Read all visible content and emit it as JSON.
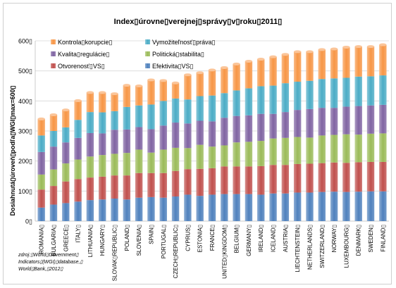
{
  "chart_data": {
    "type": "bar",
    "stacked": true,
    "title": "Index▯úrovne▯verejnej▯správy▯v▯roku▯2011▯",
    "ylabel": "Dosiahnutá▯úroveň▯podľa▯WGI▯max=600▯",
    "ylim": [
      0,
      600
    ],
    "yticks": [
      "0▯",
      "100▯",
      "200▯",
      "300▯",
      "400▯",
      "500▯",
      "600▯"
    ],
    "grid": true,
    "legend_position": "top-left",
    "categories": [
      "ROMANIA▯",
      "BULGARIA▯",
      "GREECE▯",
      "ITALY▯",
      "LITHUANIA▯",
      "HUNGARY▯",
      "SLOVAK▯REPUBLIC▯",
      "POLAND▯",
      "SLOVENIA▯",
      "SPAIN▯",
      "PORTUGAL▯",
      "CZECH▯REPUBLIC▯",
      "CYPRUS▯",
      "ESTONIA▯",
      "FRANCE▯",
      "UNITED▯KINGDOM▯",
      "BELGIUM▯",
      "GERMANY▯",
      "IRELAND▯",
      "ICELAND▯",
      "AUSTRIA▯",
      "LIECHTENSTEIN▯",
      "NETHERLANDS▯",
      "SWITZERLAND▯",
      "NORWAY▯",
      "LUXEMBOURG▯",
      "DENMARK▯",
      "SWEDEN▯",
      "FINLAND▯"
    ],
    "series": [
      {
        "name": "Efektivita▯VS▯",
        "color": "#4f81bd",
        "values": [
          45,
          55,
          60,
          65,
          70,
          72,
          75,
          72,
          78,
          80,
          78,
          82,
          88,
          84,
          88,
          90,
          90,
          90,
          88,
          92,
          92,
          95,
          95,
          97,
          98,
          97,
          98,
          99,
          99
        ]
      },
      {
        "name": "Otvorenosť▯VS▯",
        "color": "#c0504d",
        "values": [
          60,
          62,
          72,
          75,
          75,
          76,
          77,
          80,
          82,
          80,
          82,
          85,
          85,
          90,
          88,
          92,
          92,
          92,
          95,
          95,
          95,
          95,
          96,
          96,
          97,
          97,
          98,
          98,
          98
        ]
      },
      {
        "name": "Politická▯stabilita▯",
        "color": "#9bbb59",
        "values": [
          50,
          55,
          60,
          65,
          70,
          72,
          72,
          75,
          78,
          68,
          78,
          77,
          70,
          80,
          72,
          70,
          80,
          82,
          84,
          88,
          90,
          90,
          87,
          92,
          92,
          95,
          92,
          94,
          95
        ]
      },
      {
        "name": "Kvalita▯regulácie▯",
        "color": "#8064a2",
        "values": [
          75,
          76,
          70,
          72,
          78,
          72,
          80,
          78,
          75,
          78,
          80,
          84,
          82,
          80,
          84,
          92,
          88,
          88,
          90,
          82,
          86,
          90,
          95,
          92,
          90,
          92,
          95,
          94,
          95
        ]
      },
      {
        "name": "Vymožiteľnosť▯práva▯",
        "color": "#4bacc6",
        "values": [
          55,
          52,
          50,
          60,
          70,
          70,
          62,
          75,
          72,
          82,
          82,
          80,
          80,
          82,
          86,
          82,
          85,
          90,
          92,
          94,
          96,
          94,
          94,
          96,
          98,
          96,
          98,
          97,
          98
        ]
      },
      {
        "name": "Kontrola▯korupcie▯",
        "color": "#f79646",
        "values": [
          55,
          54,
          58,
          64,
          65,
          66,
          58,
          72,
          65,
          82,
          68,
          52,
          82,
          78,
          85,
          85,
          88,
          90,
          90,
          96,
          96,
          100,
          97,
          98,
          98,
          102,
          100,
          99,
          102
        ]
      }
    ]
  },
  "source_note": [
    "zdroj:▯World▯Government▯",
    "Indicators▯(WGI)▯database,▯",
    "World▯Bank,▯2012▯"
  ]
}
